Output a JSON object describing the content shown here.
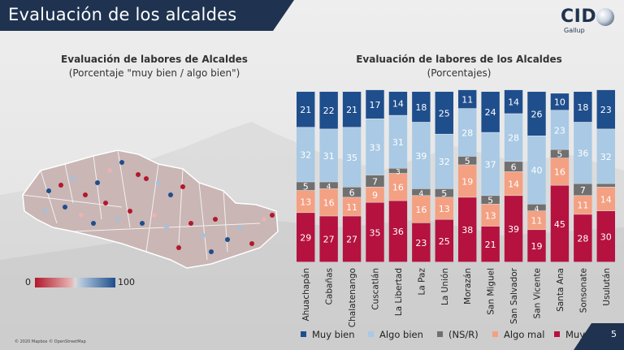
{
  "header": {
    "title": "Evaluación de los alcaldes"
  },
  "logo": {
    "name": "CID",
    "subtitle": "Gallup"
  },
  "map": {
    "title": "Evaluación de labores de Alcaldes",
    "subtitle": "(Porcentaje \"muy bien / algo bien\")",
    "scale_min": "0",
    "scale_max": "100",
    "credit": "© 2020 Mapbox © OpenStreetMap",
    "colors": {
      "low": "#b2182b",
      "high": "#1f4e8c"
    }
  },
  "chart_title": "Evaluación de labores de los Alcaldes",
  "chart_subtitle": "(Porcentajes)",
  "chart_data": {
    "type": "bar",
    "stacked": true,
    "categories": [
      "Ahuachapán",
      "Cabañas",
      "Chalatenango",
      "Cuscatlán",
      "La Libertad",
      "La Paz",
      "La Unión",
      "Morazán",
      "San Miguel",
      "San Salvador",
      "San Vicente",
      "Santa Ana",
      "Sonsonate",
      "Usulután"
    ],
    "series": [
      {
        "name": "Muy bien",
        "color": "#1f4e8c",
        "values": [
          21,
          22,
          21,
          17,
          14,
          18,
          25,
          11,
          24,
          14,
          26,
          10,
          18,
          23
        ]
      },
      {
        "name": "Algo bien",
        "color": "#a9c9e4",
        "values": [
          32,
          31,
          35,
          33,
          31,
          39,
          32,
          28,
          37,
          28,
          40,
          23,
          36,
          32
        ]
      },
      {
        "name": "(NS/R)",
        "color": "#707070",
        "values": [
          5,
          4,
          6,
          7,
          3,
          4,
          5,
          5,
          5,
          6,
          4,
          5,
          7,
          2
        ]
      },
      {
        "name": "Algo mal",
        "color": "#f4a082",
        "values": [
          13,
          16,
          11,
          9,
          16,
          16,
          13,
          19,
          13,
          14,
          11,
          16,
          11,
          14
        ]
      },
      {
        "name": "Muy mal",
        "color": "#b5123f",
        "values": [
          29,
          27,
          27,
          35,
          36,
          23,
          25,
          38,
          21,
          39,
          19,
          45,
          28,
          30
        ]
      }
    ],
    "stack_order_bottom_to_top": [
      "Muy mal",
      "Algo mal",
      "(NS/R)",
      "Algo bien",
      "Muy bien"
    ],
    "ylim": [
      0,
      100
    ],
    "legend_position": "bottom"
  },
  "page_number": "5"
}
